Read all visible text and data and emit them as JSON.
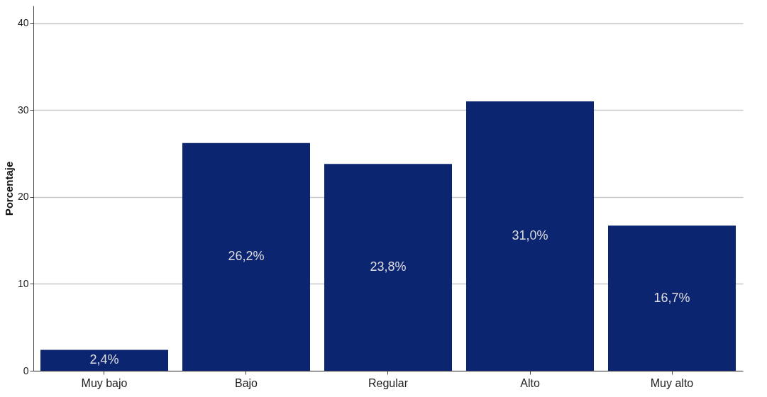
{
  "chart_data": {
    "type": "bar",
    "ylabel": "Porcentaje",
    "categories": [
      "Muy bajo",
      "Bajo",
      "Regular",
      "Alto",
      "Muy alto"
    ],
    "values": [
      2.4,
      26.2,
      23.8,
      31.0,
      16.7
    ],
    "value_labels": [
      "2,4%",
      "26,2%",
      "23,8%",
      "31,0%",
      "16,7%"
    ],
    "color": "#0c2570",
    "ylim": [
      0,
      42
    ],
    "yticks": [
      0,
      10,
      20,
      30,
      40
    ],
    "grid": "y"
  }
}
